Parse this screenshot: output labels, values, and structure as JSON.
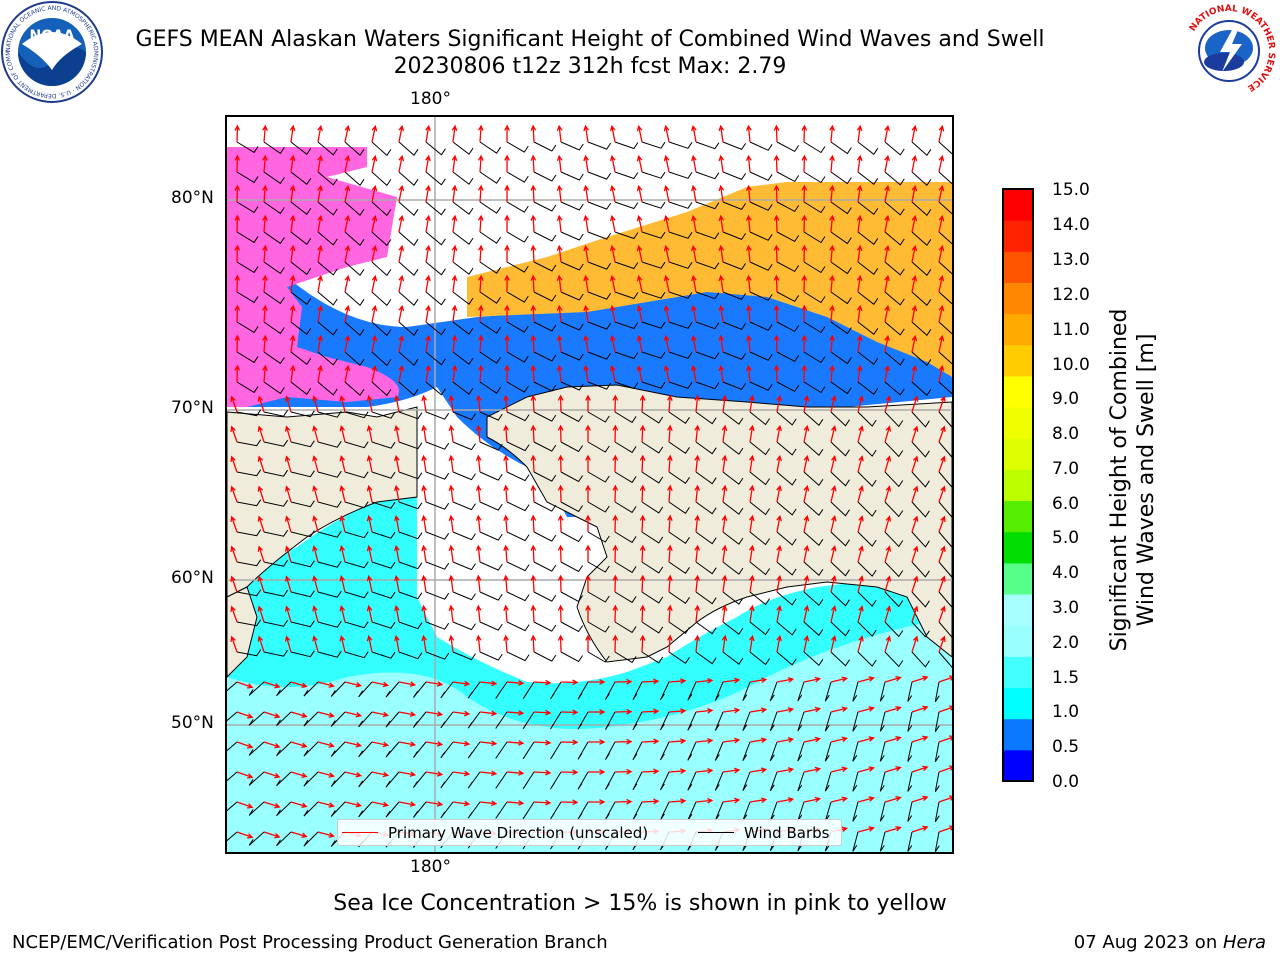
{
  "title": {
    "line1": "GEFS MEAN Alaskan Waters Significant Height of Combined Wind Waves and Swell",
    "line2": "20230806 t12z 312h fcst   Max: 2.79"
  },
  "logos": {
    "left": {
      "name": "noaa-logo",
      "text": "NOAA",
      "ring_text": "NATIONAL OCEANIC AND ATMOSPHERIC ADMINISTRATION · U.S. DEPARTMENT OF COMMERCE"
    },
    "right": {
      "name": "nws-logo",
      "ring_text": "NATIONAL WEATHER SERVICE"
    }
  },
  "map": {
    "lon_label_top": "180°",
    "lon_label_bottom": "180°",
    "lat_labels": [
      "80°N",
      "70°N",
      "60°N",
      "50°N"
    ],
    "colors": {
      "land": "#efecdc",
      "ice_pink": "#ff66e0",
      "ice_orange": "#ffbb33",
      "water_1": "#1a7aff",
      "water_2": "#33ffff",
      "water_3": "#99ffff",
      "wave_arrow": "#ff0000",
      "wind_barb": "#000000"
    }
  },
  "legend": {
    "wave_label": "Primary Wave Direction (unscaled)",
    "barb_label": "Wind Barbs"
  },
  "colorbar": {
    "label_line1": "Significant Height of Combined",
    "label_line2": "Wind Waves and Swell [m]",
    "ticks": [
      "15.0",
      "14.0",
      "13.0",
      "12.0",
      "11.0",
      "10.0",
      "9.0",
      "8.0",
      "7.0",
      "6.0",
      "5.0",
      "4.0",
      "3.0",
      "2.0",
      "1.5",
      "1.0",
      "0.5",
      "0.0"
    ],
    "colors_bottom_to_top": [
      "#0000ff",
      "#0a78ff",
      "#00ffff",
      "#44ffff",
      "#99ffff",
      "#a8ffff",
      "#55ff88",
      "#00dd00",
      "#55ee00",
      "#bbff00",
      "#ddff00",
      "#eeff00",
      "#ffff00",
      "#ffcc00",
      "#ffaa00",
      "#ff8800",
      "#ff5500",
      "#ff2200",
      "#ff0000"
    ]
  },
  "note": "Sea Ice Concentration > 15% is shown in pink to yellow",
  "footer": {
    "left": "NCEP/EMC/Verification Post Processing Product Generation Branch",
    "right_date": "07 Aug 2023 on ",
    "right_machine": "Hera"
  }
}
